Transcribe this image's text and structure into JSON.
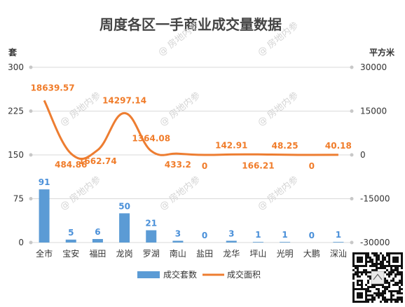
{
  "chart_data": {
    "type": "bar+line",
    "title": "周度各区一手商业成交量数据",
    "left_unit": "套",
    "right_unit": "平方米",
    "categories": [
      "全市",
      "宝安",
      "福田",
      "龙岗",
      "罗湖",
      "南山",
      "盐田",
      "龙华",
      "坪山",
      "光明",
      "大鹏",
      "深汕"
    ],
    "series": [
      {
        "name": "成交套数",
        "type": "bar",
        "axis": "left",
        "color": "#5b9bd5",
        "label_color": "#4a90d9",
        "values": [
          91,
          5,
          6,
          50,
          21,
          3,
          0,
          3,
          1,
          1,
          0,
          1
        ],
        "labels": [
          "91",
          "5",
          "6",
          "50",
          "21",
          "3",
          "0",
          "3",
          "1",
          "1",
          "0",
          "1"
        ]
      },
      {
        "name": "成交面积",
        "type": "line",
        "axis": "right",
        "color": "#ed7d31",
        "values": [
          18639.57,
          484.86,
          1662.74,
          14297.14,
          1364.08,
          433.2,
          0,
          142.91,
          166.21,
          48.25,
          0,
          40.18
        ],
        "labels": [
          "18639.57",
          "484.86",
          "1662.74",
          "14297.14",
          "1364.08",
          "433.2",
          "0",
          "142.91",
          "166.21",
          "48.25",
          "0",
          "40.18"
        ]
      }
    ],
    "left_axis": {
      "min": 0,
      "max": 300,
      "ticks": [
        0,
        75,
        150,
        225,
        300
      ]
    },
    "right_axis": {
      "min": -30000,
      "max": 30000,
      "ticks": [
        -30000,
        -15000,
        0,
        15000,
        30000
      ]
    },
    "grid": true,
    "legend_position": "bottom"
  },
  "watermark": "房地内参"
}
